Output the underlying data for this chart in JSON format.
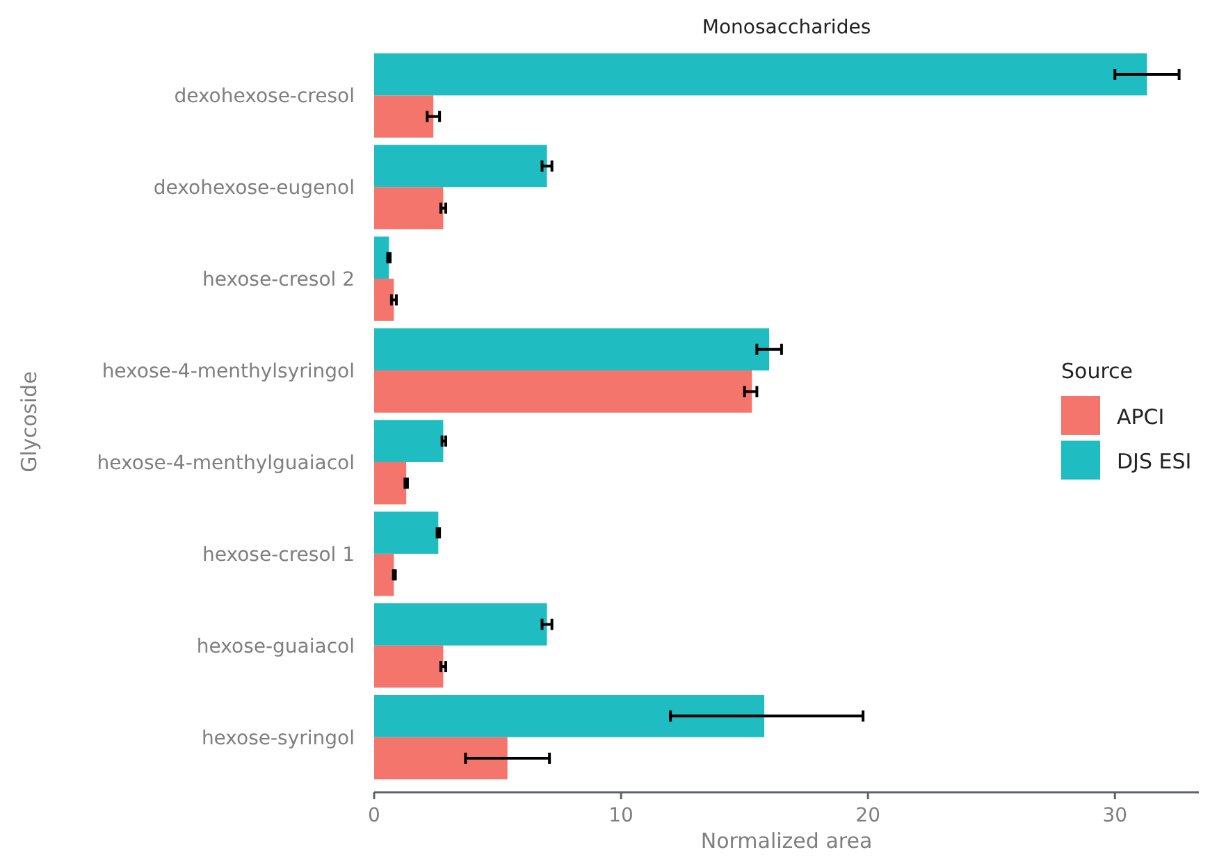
{
  "chart_data": {
    "type": "bar",
    "orientation": "horizontal",
    "title": "Monosaccharides",
    "xlabel": "Normalized area",
    "ylabel": "Glycoside",
    "legend_title": "Source",
    "legend": "right",
    "categories": [
      "dexohexose-cresol",
      "dexohexose-eugenol",
      "hexose-cresol 2",
      "hexose-4-menthylsyringol",
      "hexose-4-menthylguaiacol",
      "hexose-cresol 1",
      "hexose-guaiacol",
      "hexose-syringol"
    ],
    "xlim": [
      0,
      33.4
    ],
    "xticks": [
      0,
      10,
      20,
      30
    ],
    "grid": false,
    "series": [
      {
        "name": "APCI",
        "color": "#f3756c",
        "values": [
          2.4,
          2.8,
          0.8,
          15.3,
          1.3,
          0.8,
          2.8,
          5.4
        ],
        "errors": [
          [
            2.15,
            2.65
          ],
          [
            2.7,
            2.9
          ],
          [
            0.7,
            0.9
          ],
          [
            15.0,
            15.5
          ],
          [
            1.25,
            1.35
          ],
          [
            0.78,
            0.86
          ],
          [
            2.7,
            2.9
          ],
          [
            3.7,
            7.1
          ]
        ]
      },
      {
        "name": "DJS ESI",
        "color": "#1fbcc1",
        "values": [
          31.3,
          7.0,
          0.6,
          16.0,
          2.8,
          2.6,
          7.0,
          15.8
        ],
        "errors": [
          [
            30.0,
            32.6
          ],
          [
            6.8,
            7.2
          ],
          [
            0.55,
            0.65
          ],
          [
            15.5,
            16.5
          ],
          [
            2.75,
            2.9
          ],
          [
            2.55,
            2.65
          ],
          [
            6.8,
            7.2
          ],
          [
            12.0,
            19.8
          ]
        ]
      }
    ]
  }
}
